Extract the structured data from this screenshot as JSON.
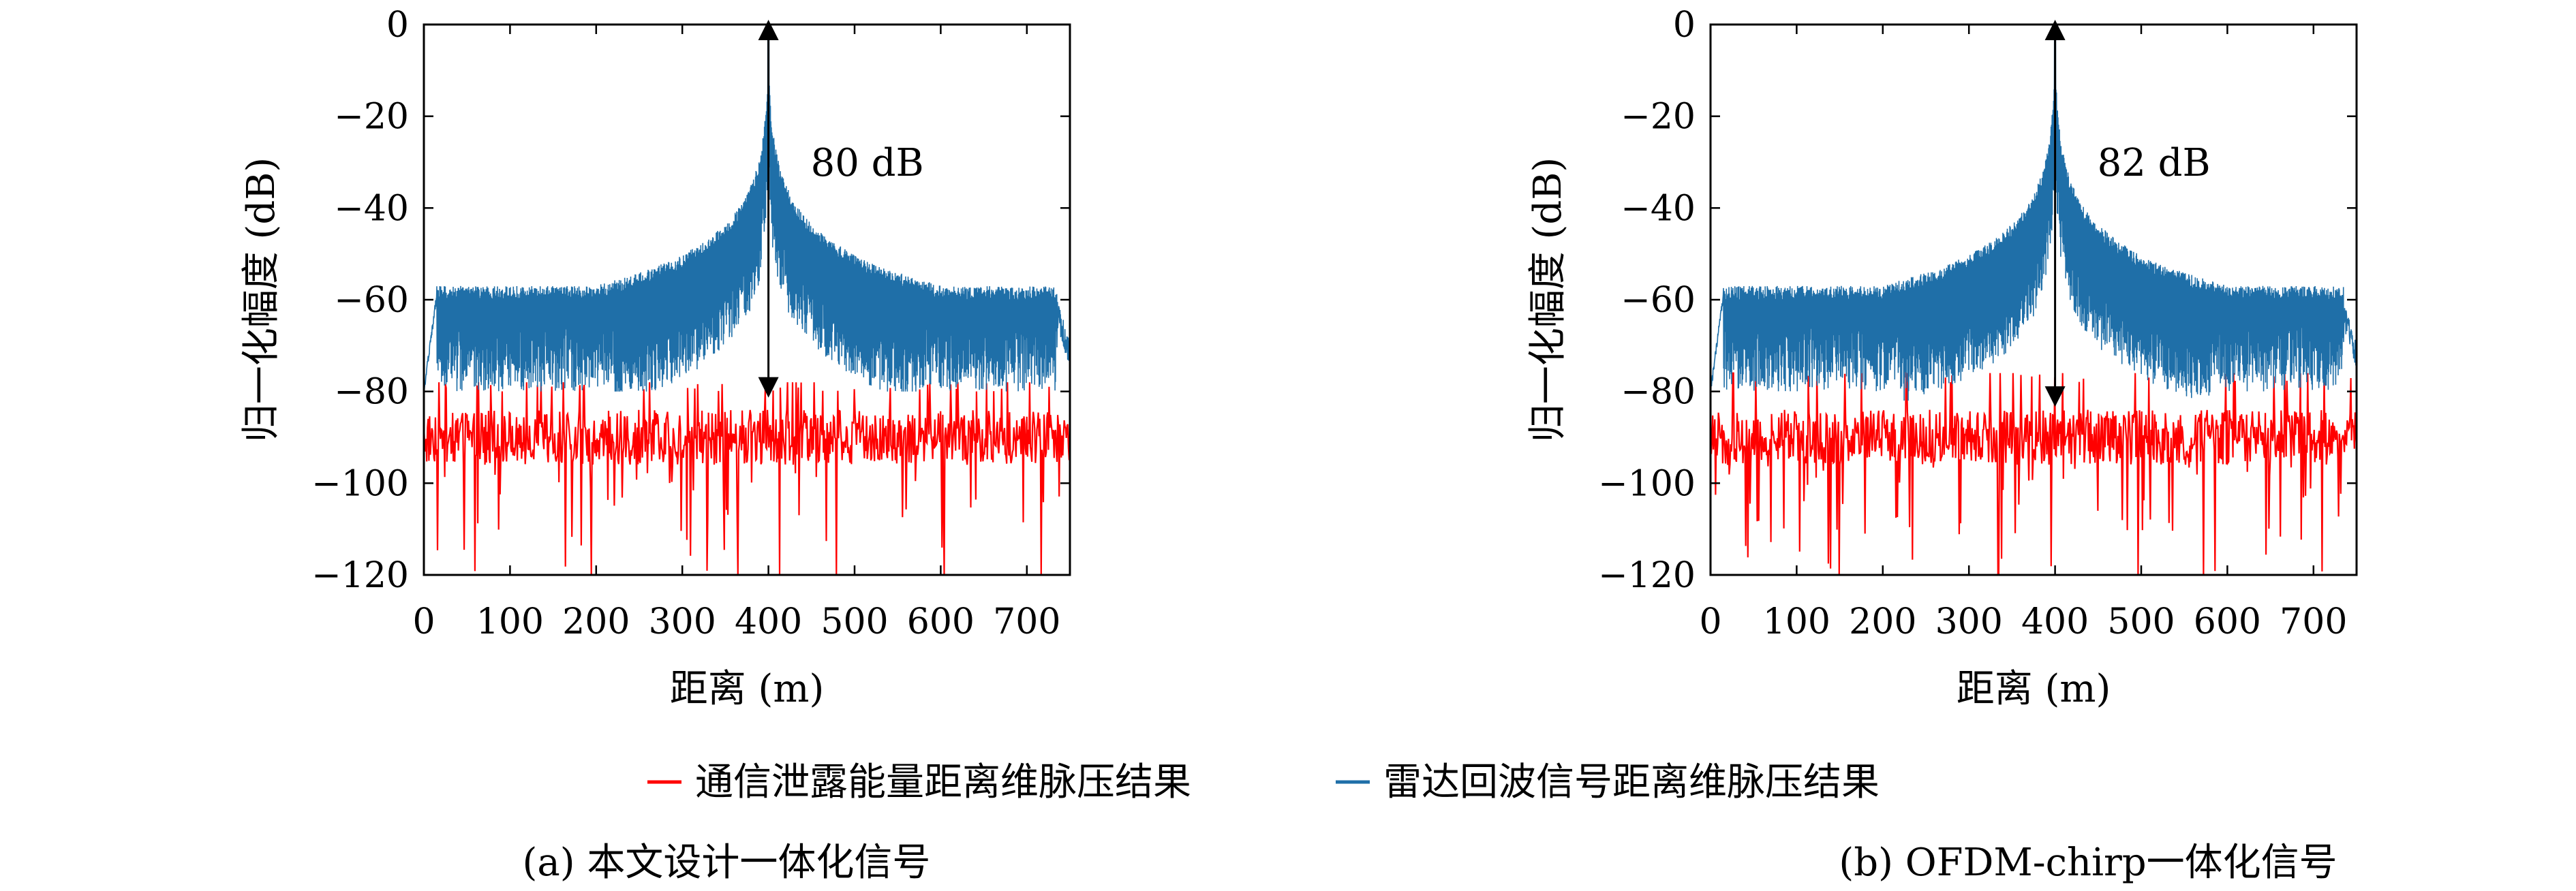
{
  "chart_data": [
    {
      "type": "line",
      "caption": "(a) 本文设计一体化信号",
      "xlabel": "距离 (m)",
      "ylabel": "归一化幅度 (dB)",
      "xlim": [
        0,
        750
      ],
      "ylim": [
        -120,
        0
      ],
      "xticks": [
        0,
        100,
        200,
        300,
        400,
        500,
        600,
        700
      ],
      "yticks": [
        0,
        -20,
        -40,
        -60,
        -80,
        -100,
        -120
      ],
      "grid": false,
      "annotation": {
        "text": "80 dB",
        "x": 400,
        "y_top": 0,
        "y_bottom": -80
      },
      "series": [
        {
          "name": "雷达回波信号距离维脉压结果",
          "color": "#1f6fa8",
          "peak_x": 400,
          "peak_y": 0,
          "sidelobe_floor": -60,
          "min_level": -80
        },
        {
          "name": "通信泄露能量距离维脉压结果",
          "color": "#ff0000",
          "mean_level": -90,
          "max_level": -80,
          "min_level": -120
        }
      ]
    },
    {
      "type": "line",
      "caption": "(b) OFDM-chirp一体化信号",
      "xlabel": "距离 (m)",
      "ylabel": "归一化幅度 (dB)",
      "xlim": [
        0,
        750
      ],
      "ylim": [
        -120,
        0
      ],
      "xticks": [
        0,
        100,
        200,
        300,
        400,
        500,
        600,
        700
      ],
      "yticks": [
        0,
        -20,
        -40,
        -60,
        -80,
        -100,
        -120
      ],
      "grid": false,
      "annotation": {
        "text": "82 dB",
        "x": 400,
        "y_top": 0,
        "y_bottom": -82
      },
      "series": [
        {
          "name": "雷达回波信号距离维脉压结果",
          "color": "#1f6fa8",
          "peak_x": 400,
          "peak_y": 0,
          "sidelobe_floor": -60,
          "min_level": -82
        },
        {
          "name": "通信泄露能量距离维脉压结果",
          "color": "#ff0000",
          "mean_level": -90,
          "max_level": -78,
          "min_level": -120
        }
      ]
    }
  ],
  "legend": {
    "placement": "bottom-center",
    "items": [
      {
        "label": "通信泄露能量距离维脉压结果",
        "color": "#ff0000"
      },
      {
        "label": "雷达回波信号距离维脉压结果",
        "color": "#1f6fa8"
      }
    ]
  }
}
